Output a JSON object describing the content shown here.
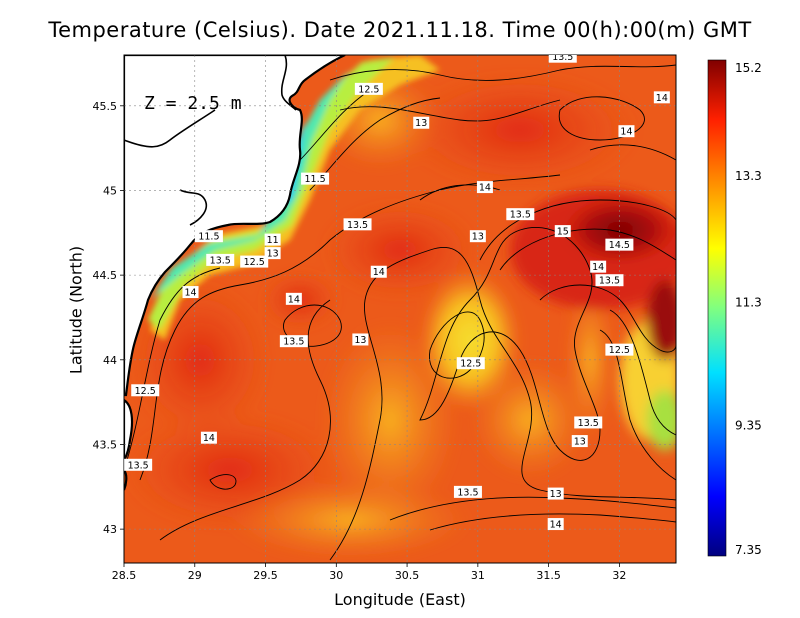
{
  "title": "Temperature (Celsius). Date 2021.11.18. Time 00(h):00(m) GMT",
  "depth_label": "Z = 2.5 m",
  "x_axis": {
    "label": "Longitude (East)",
    "range": [
      28.5,
      32.4
    ],
    "ticks": [
      "28.5",
      "29",
      "29.5",
      "30",
      "30.5",
      "31",
      "31.5",
      "32"
    ]
  },
  "y_axis": {
    "label": "Latitude (North)",
    "range": [
      42.8,
      45.8
    ],
    "ticks": [
      "43",
      "43.5",
      "44",
      "44.5",
      "45",
      "45.5"
    ]
  },
  "colorbar": {
    "ticks": [
      "15.2",
      "13.3",
      "11.3",
      "9.35",
      "7.35"
    ],
    "min": 7.35,
    "max": 15.2
  },
  "contour_labels": [
    {
      "text": "13.5",
      "lon": 31.6,
      "lat": 45.79
    },
    {
      "text": "14",
      "lon": 32.3,
      "lat": 45.55
    },
    {
      "text": "14",
      "lon": 32.05,
      "lat": 45.35
    },
    {
      "text": "12.5",
      "lon": 30.23,
      "lat": 45.6
    },
    {
      "text": "13",
      "lon": 30.6,
      "lat": 45.4
    },
    {
      "text": "11.5",
      "lon": 29.85,
      "lat": 45.07
    },
    {
      "text": "14",
      "lon": 31.05,
      "lat": 45.02
    },
    {
      "text": "13.5",
      "lon": 31.3,
      "lat": 44.86
    },
    {
      "text": "13.5",
      "lon": 30.15,
      "lat": 44.8
    },
    {
      "text": "11.5",
      "lon": 29.1,
      "lat": 44.73
    },
    {
      "text": "11",
      "lon": 29.55,
      "lat": 44.71
    },
    {
      "text": "13",
      "lon": 31.0,
      "lat": 44.73
    },
    {
      "text": "15",
      "lon": 31.6,
      "lat": 44.76
    },
    {
      "text": "14.5",
      "lon": 32.0,
      "lat": 44.68
    },
    {
      "text": "13",
      "lon": 29.55,
      "lat": 44.63
    },
    {
      "text": "13.5",
      "lon": 29.18,
      "lat": 44.59
    },
    {
      "text": "12.5",
      "lon": 29.42,
      "lat": 44.58
    },
    {
      "text": "14",
      "lon": 30.3,
      "lat": 44.52
    },
    {
      "text": "14",
      "lon": 31.85,
      "lat": 44.55
    },
    {
      "text": "13.5",
      "lon": 31.93,
      "lat": 44.47
    },
    {
      "text": "14",
      "lon": 28.97,
      "lat": 44.4
    },
    {
      "text": "14",
      "lon": 29.7,
      "lat": 44.36
    },
    {
      "text": "13.5",
      "lon": 29.7,
      "lat": 44.11
    },
    {
      "text": "13",
      "lon": 30.17,
      "lat": 44.12
    },
    {
      "text": "12.5",
      "lon": 32.0,
      "lat": 44.06
    },
    {
      "text": "12.5",
      "lon": 30.95,
      "lat": 43.98
    },
    {
      "text": "12.5",
      "lon": 28.65,
      "lat": 43.82
    },
    {
      "text": "13.5",
      "lon": 31.78,
      "lat": 43.63
    },
    {
      "text": "14",
      "lon": 29.1,
      "lat": 43.54
    },
    {
      "text": "13",
      "lon": 31.72,
      "lat": 43.52
    },
    {
      "text": "13.5",
      "lon": 28.6,
      "lat": 43.38
    },
    {
      "text": "13.5",
      "lon": 30.93,
      "lat": 43.22
    },
    {
      "text": "13",
      "lon": 31.55,
      "lat": 43.21
    },
    {
      "text": "14",
      "lon": 31.55,
      "lat": 43.03
    }
  ]
}
